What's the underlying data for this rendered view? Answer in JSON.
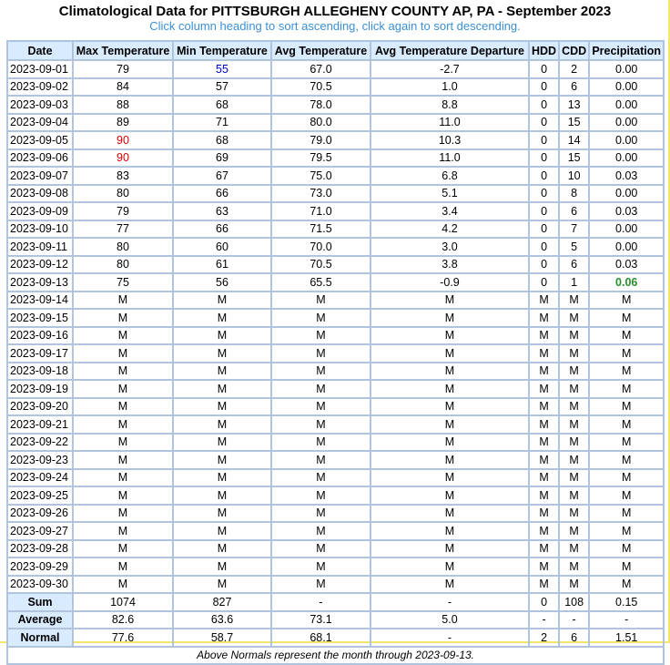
{
  "title": "Climatological Data for PITTSBURGH ALLEGHENY COUNTY AP, PA - September 2023",
  "subtitle": "Click column heading to sort ascending, click again to sort descending.",
  "columns": [
    "Date",
    "Max Temperature",
    "Min Temperature",
    "Avg Temperature",
    "Avg Temperature Departure",
    "HDD",
    "CDD",
    "Precipitation"
  ],
  "rows": [
    [
      "2023-09-01",
      "79",
      "55",
      "67.0",
      "-2.7",
      "0",
      "2",
      "0.00"
    ],
    [
      "2023-09-02",
      "84",
      "57",
      "70.5",
      "1.0",
      "0",
      "6",
      "0.00"
    ],
    [
      "2023-09-03",
      "88",
      "68",
      "78.0",
      "8.8",
      "0",
      "13",
      "0.00"
    ],
    [
      "2023-09-04",
      "89",
      "71",
      "80.0",
      "11.0",
      "0",
      "15",
      "0.00"
    ],
    [
      "2023-09-05",
      "90",
      "68",
      "79.0",
      "10.3",
      "0",
      "14",
      "0.00"
    ],
    [
      "2023-09-06",
      "90",
      "69",
      "79.5",
      "11.0",
      "0",
      "15",
      "0.00"
    ],
    [
      "2023-09-07",
      "83",
      "67",
      "75.0",
      "6.8",
      "0",
      "10",
      "0.03"
    ],
    [
      "2023-09-08",
      "80",
      "66",
      "73.0",
      "5.1",
      "0",
      "8",
      "0.00"
    ],
    [
      "2023-09-09",
      "79",
      "63",
      "71.0",
      "3.4",
      "0",
      "6",
      "0.03"
    ],
    [
      "2023-09-10",
      "77",
      "66",
      "71.5",
      "4.2",
      "0",
      "7",
      "0.00"
    ],
    [
      "2023-09-11",
      "80",
      "60",
      "70.0",
      "3.0",
      "0",
      "5",
      "0.00"
    ],
    [
      "2023-09-12",
      "80",
      "61",
      "70.5",
      "3.8",
      "0",
      "6",
      "0.03"
    ],
    [
      "2023-09-13",
      "75",
      "56",
      "65.5",
      "-0.9",
      "0",
      "1",
      "0.06"
    ],
    [
      "2023-09-14",
      "M",
      "M",
      "M",
      "M",
      "M",
      "M",
      "M"
    ],
    [
      "2023-09-15",
      "M",
      "M",
      "M",
      "M",
      "M",
      "M",
      "M"
    ],
    [
      "2023-09-16",
      "M",
      "M",
      "M",
      "M",
      "M",
      "M",
      "M"
    ],
    [
      "2023-09-17",
      "M",
      "M",
      "M",
      "M",
      "M",
      "M",
      "M"
    ],
    [
      "2023-09-18",
      "M",
      "M",
      "M",
      "M",
      "M",
      "M",
      "M"
    ],
    [
      "2023-09-19",
      "M",
      "M",
      "M",
      "M",
      "M",
      "M",
      "M"
    ],
    [
      "2023-09-20",
      "M",
      "M",
      "M",
      "M",
      "M",
      "M",
      "M"
    ],
    [
      "2023-09-21",
      "M",
      "M",
      "M",
      "M",
      "M",
      "M",
      "M"
    ],
    [
      "2023-09-22",
      "M",
      "M",
      "M",
      "M",
      "M",
      "M",
      "M"
    ],
    [
      "2023-09-23",
      "M",
      "M",
      "M",
      "M",
      "M",
      "M",
      "M"
    ],
    [
      "2023-09-24",
      "M",
      "M",
      "M",
      "M",
      "M",
      "M",
      "M"
    ],
    [
      "2023-09-25",
      "M",
      "M",
      "M",
      "M",
      "M",
      "M",
      "M"
    ],
    [
      "2023-09-26",
      "M",
      "M",
      "M",
      "M",
      "M",
      "M",
      "M"
    ],
    [
      "2023-09-27",
      "M",
      "M",
      "M",
      "M",
      "M",
      "M",
      "M"
    ],
    [
      "2023-09-28",
      "M",
      "M",
      "M",
      "M",
      "M",
      "M",
      "M"
    ],
    [
      "2023-09-29",
      "M",
      "M",
      "M",
      "M",
      "M",
      "M",
      "M"
    ],
    [
      "2023-09-30",
      "M",
      "M",
      "M",
      "M",
      "M",
      "M",
      "M"
    ]
  ],
  "highlights": [
    {
      "row": 0,
      "col": 2,
      "style": "blue"
    },
    {
      "row": 4,
      "col": 1,
      "style": "red"
    },
    {
      "row": 5,
      "col": 1,
      "style": "red"
    },
    {
      "row": 12,
      "col": 7,
      "style": "green"
    }
  ],
  "summary": [
    [
      "Sum",
      "1074",
      "827",
      "-",
      "-",
      "0",
      "108",
      "0.15"
    ],
    [
      "Average",
      "82.6",
      "63.6",
      "73.1",
      "5.0",
      "-",
      "-",
      "-"
    ],
    [
      "Normal",
      "77.6",
      "58.7",
      "68.1",
      "-",
      "2",
      "6",
      "1.51"
    ]
  ],
  "footnote": "Above Normals represent the month through 2023-09-13.",
  "colors": {
    "header_bg": "#d9ecff",
    "border": "#b0c4de",
    "subtitle": "#3a8fd6",
    "record_high": "#e00000",
    "record_low": "#0000cc",
    "max_precip": "#2a8f2a",
    "frame": "#f2e66b"
  }
}
